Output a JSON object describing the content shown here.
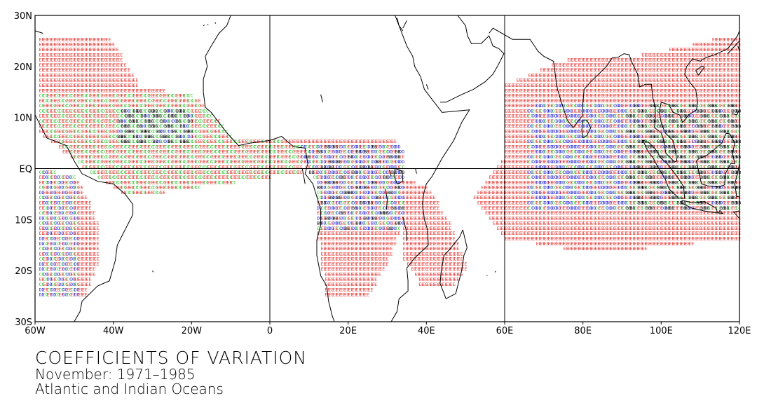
{
  "caption": {
    "title": "COEFFICIENTS OF VARIATION",
    "period": "November: 1971–1985",
    "region": "Atlantic and Indian Oceans"
  },
  "map": {
    "lon_range": [
      -60,
      120
    ],
    "lat_range": [
      -30,
      30
    ],
    "x_ticks": [
      {
        "lon": -60,
        "label": "60W"
      },
      {
        "lon": -40,
        "label": "40W"
      },
      {
        "lon": -20,
        "label": "20W"
      },
      {
        "lon": 0,
        "label": "0"
      },
      {
        "lon": 20,
        "label": "20E"
      },
      {
        "lon": 40,
        "label": "40E"
      },
      {
        "lon": 60,
        "label": "60E"
      },
      {
        "lon": 80,
        "label": "80E"
      },
      {
        "lon": 100,
        "label": "100E"
      },
      {
        "lon": 120,
        "label": "120E"
      }
    ],
    "y_ticks": [
      {
        "lat": 30,
        "label": "30N"
      },
      {
        "lat": 20,
        "label": "20N"
      },
      {
        "lat": 10,
        "label": "10N"
      },
      {
        "lat": 0,
        "label": "EQ"
      },
      {
        "lat": -10,
        "label": "10S"
      },
      {
        "lat": -20,
        "label": "20S"
      },
      {
        "lat": -30,
        "label": "30S"
      }
    ],
    "reference_lines": {
      "lon": [
        0,
        60
      ],
      "lat": [
        0
      ]
    },
    "code_colors": {
      "E": "#e0302c",
      "C": "#1bb81b",
      "D": "#2c2cd8",
      "B": "#000000"
    },
    "grid_step_deg": 1,
    "coastlines": [
      [
        [
          -60,
          10.5
        ],
        [
          -57,
          6
        ],
        [
          -52,
          4.5
        ],
        [
          -50,
          1.5
        ],
        [
          -48,
          -1
        ],
        [
          -44,
          -2.5
        ],
        [
          -40,
          -3
        ],
        [
          -37,
          -5
        ],
        [
          -35,
          -7
        ],
        [
          -35,
          -9
        ],
        [
          -37,
          -12
        ],
        [
          -39,
          -15
        ],
        [
          -39.5,
          -18
        ],
        [
          -41,
          -22
        ],
        [
          -44,
          -23
        ],
        [
          -48,
          -26
        ],
        [
          -48.5,
          -28
        ],
        [
          -50,
          -30
        ]
      ],
      [
        [
          -60,
          27
        ],
        [
          -58,
          26.5
        ]
      ],
      [
        [
          -17,
          15
        ],
        [
          -16.5,
          12
        ],
        [
          -15,
          11
        ],
        [
          -13,
          9
        ],
        [
          -11,
          7
        ],
        [
          -8,
          4.5
        ],
        [
          -5,
          5
        ],
        [
          0,
          5.5
        ],
        [
          3,
          6.3
        ],
        [
          6,
          4.3
        ],
        [
          9,
          4
        ],
        [
          9.7,
          1
        ],
        [
          9,
          -1
        ],
        [
          11,
          -3
        ],
        [
          12,
          -5.5
        ],
        [
          13,
          -8
        ],
        [
          13,
          -11
        ],
        [
          12,
          -14
        ],
        [
          12,
          -17
        ],
        [
          13,
          -21
        ],
        [
          14.5,
          -23
        ],
        [
          15,
          -26
        ],
        [
          16,
          -29
        ],
        [
          16.5,
          -30
        ]
      ],
      [
        [
          -17,
          15
        ],
        [
          -17,
          17.5
        ],
        [
          -16,
          20
        ],
        [
          -16.5,
          22
        ],
        [
          -15,
          24
        ],
        [
          -13,
          26.5
        ],
        [
          -11,
          28
        ],
        [
          -10,
          30
        ]
      ],
      [
        [
          32,
          30
        ],
        [
          33,
          28
        ],
        [
          34,
          26
        ],
        [
          35,
          24
        ],
        [
          36.5,
          22
        ],
        [
          37,
          20
        ],
        [
          38.5,
          18
        ],
        [
          39.5,
          15.5
        ],
        [
          42,
          13
        ],
        [
          43.5,
          11.5
        ],
        [
          44,
          11
        ],
        [
          51,
          11.5
        ],
        [
          49,
          9
        ],
        [
          47,
          5.5
        ],
        [
          44,
          2
        ],
        [
          41.5,
          -1.5
        ],
        [
          40,
          -3
        ],
        [
          39.3,
          -5
        ],
        [
          39,
          -7
        ],
        [
          39.5,
          -10
        ],
        [
          40.3,
          -12
        ],
        [
          40.5,
          -15
        ],
        [
          37,
          -17.5
        ],
        [
          35,
          -19.5
        ],
        [
          35.3,
          -22
        ],
        [
          35.3,
          -24
        ],
        [
          33,
          -25.5
        ],
        [
          32.5,
          -28
        ],
        [
          31,
          -30
        ]
      ],
      [
        [
          34,
          27.5
        ],
        [
          35,
          29
        ]
      ],
      [
        [
          32.5,
          29.5
        ],
        [
          33,
          28
        ],
        [
          34,
          27
        ]
      ],
      [
        [
          43.5,
          13
        ],
        [
          45,
          13
        ],
        [
          49,
          14.5
        ],
        [
          52,
          15.5
        ],
        [
          55,
          17
        ],
        [
          57,
          18.5
        ],
        [
          58.5,
          20.5
        ],
        [
          59.8,
          22.5
        ],
        [
          58.5,
          23.5
        ],
        [
          57,
          24
        ],
        [
          56,
          26
        ],
        [
          54,
          24.5
        ],
        [
          51.5,
          24.5
        ],
        [
          50.5,
          26
        ],
        [
          50,
          28
        ],
        [
          48,
          30
        ]
      ],
      [
        [
          56,
          26.5
        ],
        [
          57,
          27.5
        ],
        [
          62,
          25.3
        ],
        [
          66.5,
          25.3
        ],
        [
          68.5,
          23
        ],
        [
          70,
          22
        ],
        [
          72.5,
          21
        ],
        [
          73,
          18
        ],
        [
          73.5,
          15.5
        ],
        [
          74.5,
          13
        ],
        [
          76,
          9.5
        ],
        [
          77.5,
          8
        ],
        [
          78.5,
          9
        ],
        [
          79.8,
          10.3
        ],
        [
          80,
          13
        ],
        [
          80.3,
          15.5
        ],
        [
          82,
          17
        ],
        [
          84,
          18.5
        ],
        [
          86,
          20
        ],
        [
          87.5,
          21.7
        ],
        [
          89,
          21.8
        ],
        [
          90.5,
          22.5
        ],
        [
          91.8,
          22.3
        ],
        [
          92.5,
          20.8
        ],
        [
          94,
          18.5
        ],
        [
          94.5,
          16
        ],
        [
          96,
          16.5
        ],
        [
          97.5,
          16.5
        ],
        [
          97.8,
          14
        ],
        [
          98.5,
          12
        ],
        [
          98.5,
          10
        ],
        [
          98.3,
          8
        ],
        [
          100,
          7
        ],
        [
          100.5,
          6
        ],
        [
          101.2,
          3
        ],
        [
          103.4,
          1.3
        ],
        [
          104,
          1.5
        ],
        [
          103.5,
          4
        ],
        [
          103,
          5.5
        ],
        [
          101,
          7
        ],
        [
          100,
          9
        ],
        [
          99.5,
          11
        ],
        [
          100,
          13
        ],
        [
          102,
          12.5
        ],
        [
          103,
          11
        ],
        [
          104.7,
          10.5
        ],
        [
          105.5,
          9
        ],
        [
          107,
          10.5
        ],
        [
          109,
          11.5
        ],
        [
          109.3,
          13
        ],
        [
          108.8,
          15.5
        ],
        [
          107.2,
          17
        ],
        [
          106,
          18.5
        ],
        [
          106.5,
          20
        ],
        [
          108,
          21.5
        ],
        [
          110,
          21
        ],
        [
          111,
          21.6
        ],
        [
          114,
          22.4
        ],
        [
          117,
          23.5
        ],
        [
          119.5,
          26
        ],
        [
          120,
          27
        ]
      ],
      [
        [
          80,
          6
        ],
        [
          81,
          6.5
        ],
        [
          82,
          8
        ],
        [
          81,
          9.5
        ],
        [
          80,
          9.5
        ],
        [
          79.7,
          7.5
        ],
        [
          80,
          6
        ]
      ],
      [
        [
          95.3,
          5.6
        ],
        [
          97,
          5
        ],
        [
          98.5,
          3.8
        ],
        [
          100,
          2
        ],
        [
          101.5,
          1
        ],
        [
          103,
          -0.5
        ],
        [
          104,
          -1.5
        ],
        [
          105.7,
          -3.5
        ],
        [
          106,
          -5.8
        ],
        [
          104.5,
          -5.8
        ],
        [
          102,
          -4
        ],
        [
          101,
          -2
        ],
        [
          99,
          0.5
        ],
        [
          98,
          2
        ],
        [
          96.5,
          3.5
        ],
        [
          95.3,
          5.6
        ]
      ],
      [
        [
          105.3,
          -6.2
        ],
        [
          108,
          -6.7
        ],
        [
          111,
          -6.5
        ],
        [
          114,
          -7.7
        ],
        [
          114.4,
          -8.7
        ],
        [
          111,
          -8.3
        ],
        [
          108,
          -7.8
        ],
        [
          105.3,
          -6.8
        ],
        [
          105.3,
          -6.2
        ]
      ],
      [
        [
          109,
          1.5
        ],
        [
          109.7,
          -1
        ],
        [
          110.3,
          -3
        ],
        [
          112,
          -3.4
        ],
        [
          114.5,
          -3.6
        ],
        [
          116.2,
          -3.2
        ],
        [
          116.4,
          -1
        ],
        [
          117.8,
          1
        ],
        [
          118.8,
          1
        ],
        [
          118.2,
          3
        ],
        [
          118.8,
          5
        ],
        [
          117.5,
          6.8
        ],
        [
          116.6,
          6.9
        ],
        [
          115.5,
          5
        ],
        [
          113.5,
          3.7
        ],
        [
          111.5,
          2.5
        ],
        [
          109.7,
          2
        ],
        [
          109,
          1.5
        ]
      ],
      [
        [
          120,
          1
        ],
        [
          120,
          -5.5
        ],
        [
          119.3,
          -5.5
        ],
        [
          118.8,
          -3
        ],
        [
          119.5,
          -1
        ],
        [
          120,
          1
        ]
      ],
      [
        [
          120,
          -9.8
        ],
        [
          118.5,
          -8.5
        ],
        [
          120,
          -8.3
        ]
      ],
      [
        [
          115,
          -8.2
        ],
        [
          115.7,
          -8.8
        ],
        [
          114.6,
          -8.7
        ],
        [
          115,
          -8.2
        ]
      ],
      [
        [
          49.3,
          -12
        ],
        [
          50.4,
          -15.5
        ],
        [
          49.6,
          -17
        ],
        [
          49,
          -20
        ],
        [
          47.5,
          -24.5
        ],
        [
          45,
          -25.5
        ],
        [
          43.5,
          -22.5
        ],
        [
          43.8,
          -20
        ],
        [
          44.5,
          -17
        ],
        [
          46,
          -15.8
        ],
        [
          48.5,
          -13.4
        ],
        [
          49.3,
          -12
        ]
      ],
      [
        [
          32,
          0
        ],
        [
          33.8,
          -0.5
        ],
        [
          34,
          -2.5
        ],
        [
          32.6,
          -3
        ],
        [
          31.7,
          -1.5
        ],
        [
          32,
          0
        ]
      ],
      [
        [
          118,
          10.8
        ],
        [
          119.3,
          10.5
        ],
        [
          120,
          11.6
        ]
      ],
      [
        [
          120,
          14
        ],
        [
          120,
          18.5
        ]
      ],
      [
        [
          119.6,
          24
        ],
        [
          120,
          23
        ]
      ],
      [
        [
          117,
          22.5
        ],
        [
          120,
          25
        ]
      ],
      [
        [
          108.8,
          19.2
        ],
        [
          110.5,
          20.1
        ],
        [
          111,
          19.8
        ],
        [
          109.5,
          18.3
        ],
        [
          108.8,
          19.2
        ]
      ],
      [
        [
          13,
          14.5
        ],
        [
          13.5,
          13
        ]
      ],
      [
        [
          -30,
          -20
        ],
        [
          -29.8,
          -20.3
        ]
      ],
      [
        [
          57.5,
          -20.3
        ],
        [
          57.7,
          -20.1
        ]
      ],
      [
        [
          55.4,
          -21
        ],
        [
          55.6,
          -20.9
        ]
      ],
      [
        [
          -17,
          28
        ],
        [
          -16.7,
          28.1
        ]
      ],
      [
        [
          -16,
          28.2
        ],
        [
          -15.7,
          28.1
        ]
      ],
      [
        [
          -14,
          28.4
        ],
        [
          -13.8,
          28.6
        ]
      ],
      [
        [
          40.5,
          15.5
        ],
        [
          40,
          16.5
        ]
      ],
      [
        [
          31,
          -1.5
        ],
        [
          30.5,
          -0.3
        ]
      ],
      [
        [
          29.8,
          -8
        ],
        [
          30,
          -6
        ],
        [
          29.5,
          -4
        ]
      ],
      [
        [
          34,
          -9.5
        ],
        [
          34.8,
          -12
        ],
        [
          35,
          -14.2
        ]
      ],
      [
        [
          37.5,
          -1
        ],
        [
          37.2,
          0
        ]
      ],
      [
        [
          9,
          -3
        ],
        [
          8.3,
          0
        ]
      ]
    ]
  }
}
